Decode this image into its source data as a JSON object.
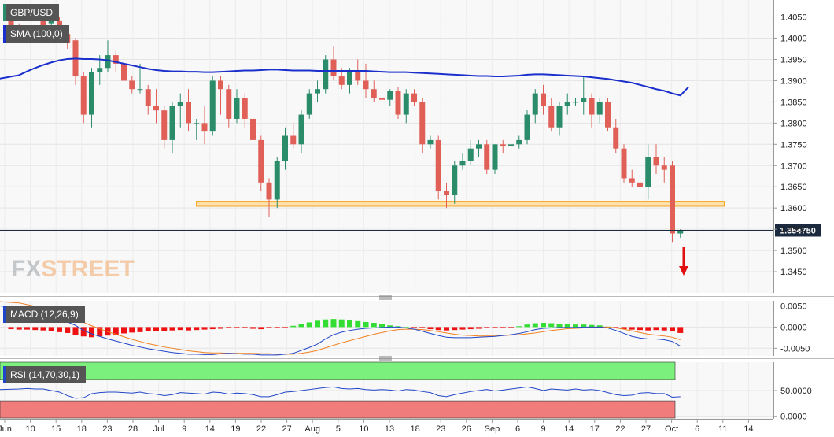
{
  "chart_data": {
    "type": "candlestick",
    "symbol": "GBP/USD",
    "indicator_labels": {
      "sma": "SMA (100,0)",
      "macd": "MACD (12,26,9)",
      "rsi": "RSI (14,70,30,1)"
    },
    "colors": {
      "up": "#2b8c6a",
      "down": "#e06058",
      "sma": "#1a2fcc",
      "support_zone": "#f5a623",
      "macd_line": "#2046c8",
      "signal_line": "#f08020",
      "hist_pos": "#33dd33",
      "hist_neg": "#ee1111",
      "rsi_line": "#2046c8",
      "rsi_overbought_fill": "#7cf07c",
      "rsi_oversold_fill": "#f07c7c",
      "arrow": "#e01010",
      "brand": "#f0a868",
      "price_label_bg": "#1c2a40"
    },
    "brand": {
      "prefix": "FX",
      "suffix": "STREET"
    },
    "x_tick_labels": [
      "Jun",
      "10",
      "15",
      "18",
      "23",
      "28",
      "Jul",
      "9",
      "14",
      "19",
      "22",
      "27",
      "Aug",
      "5",
      "10",
      "13",
      "18",
      "23",
      "26",
      "Sep",
      "6",
      "9",
      "14",
      "17",
      "22",
      "27",
      "Oct",
      "6",
      "11",
      "14"
    ],
    "price_axis": {
      "min": 1.34,
      "max": 1.409,
      "ticks": [
        "1.4050",
        "1.4000",
        "1.3950",
        "1.3900",
        "1.3850",
        "1.3800",
        "1.3750",
        "1.3700",
        "1.3650",
        "1.3600",
        "1.3550",
        "1.3500",
        "1.3450"
      ]
    },
    "last_price": "1.354750",
    "support_zone": [
      1.3605,
      1.3615
    ],
    "macd_axis": {
      "min": -0.0068,
      "max": 0.0062,
      "ticks": [
        "0.0050",
        "0.0000",
        "-0.0050"
      ]
    },
    "rsi_axis": {
      "min": -5,
      "max": 105,
      "ticks": [
        "50.0000",
        "0.0000"
      ],
      "overbought": 70,
      "oversold": 30
    },
    "candles": [
      [
        1.4045,
        1.405,
        1.4015,
        1.403
      ],
      [
        1.403,
        1.4035,
        1.4,
        1.401
      ],
      [
        1.401,
        1.4025,
        1.3995,
        1.402
      ],
      [
        1.402,
        1.403,
        1.3995,
        1.4
      ],
      [
        1.405,
        1.4065,
        1.4015,
        1.403
      ],
      [
        1.4035,
        1.4055,
        1.402,
        1.404
      ],
      [
        1.404,
        1.405,
        1.4,
        1.401
      ],
      [
        1.401,
        1.4025,
        1.3975,
        1.399
      ],
      [
        1.3995,
        1.4,
        1.389,
        1.391
      ],
      [
        1.391,
        1.392,
        1.38,
        1.382
      ],
      [
        1.382,
        1.393,
        1.379,
        1.392
      ],
      [
        1.392,
        1.396,
        1.389,
        1.393
      ],
      [
        1.393,
        1.3995,
        1.392,
        1.396
      ],
      [
        1.396,
        1.397,
        1.392,
        1.394
      ],
      [
        1.394,
        1.396,
        1.388,
        1.39
      ],
      [
        1.39,
        1.391,
        1.387,
        1.388
      ],
      [
        1.388,
        1.394,
        1.387,
        1.388
      ],
      [
        1.388,
        1.389,
        1.382,
        1.384
      ],
      [
        1.384,
        1.388,
        1.38,
        1.383
      ],
      [
        1.383,
        1.384,
        1.374,
        1.376
      ],
      [
        1.376,
        1.385,
        1.373,
        1.384
      ],
      [
        1.384,
        1.387,
        1.379,
        1.385
      ],
      [
        1.385,
        1.388,
        1.378,
        1.38
      ],
      [
        1.38,
        1.381,
        1.376,
        1.38
      ],
      [
        1.38,
        1.384,
        1.375,
        1.378
      ],
      [
        1.378,
        1.391,
        1.377,
        1.39
      ],
      [
        1.39,
        1.391,
        1.382,
        1.388
      ],
      [
        1.388,
        1.389,
        1.379,
        1.381
      ],
      [
        1.381,
        1.388,
        1.38,
        1.386
      ],
      [
        1.386,
        1.387,
        1.379,
        1.381
      ],
      [
        1.381,
        1.382,
        1.374,
        1.376
      ],
      [
        1.376,
        1.377,
        1.364,
        1.366
      ],
      [
        1.366,
        1.367,
        1.358,
        1.362
      ],
      [
        1.362,
        1.372,
        1.36,
        1.371
      ],
      [
        1.371,
        1.379,
        1.369,
        1.377
      ],
      [
        1.377,
        1.38,
        1.374,
        1.375
      ],
      [
        1.375,
        1.383,
        1.373,
        1.382
      ],
      [
        1.382,
        1.388,
        1.381,
        1.387
      ],
      [
        1.387,
        1.39,
        1.385,
        1.388
      ],
      [
        1.388,
        1.396,
        1.387,
        1.395
      ],
      [
        1.395,
        1.398,
        1.39,
        1.391
      ],
      [
        1.391,
        1.393,
        1.388,
        1.389
      ],
      [
        1.389,
        1.393,
        1.387,
        1.392
      ],
      [
        1.392,
        1.395,
        1.389,
        1.39
      ],
      [
        1.39,
        1.394,
        1.386,
        1.388
      ],
      [
        1.388,
        1.39,
        1.385,
        1.386
      ],
      [
        1.386,
        1.387,
        1.384,
        1.3855
      ],
      [
        1.3855,
        1.388,
        1.384,
        1.3875
      ],
      [
        1.3875,
        1.3885,
        1.381,
        1.382
      ],
      [
        1.382,
        1.388,
        1.38,
        1.387
      ],
      [
        1.387,
        1.388,
        1.384,
        1.385
      ],
      [
        1.385,
        1.386,
        1.373,
        1.375
      ],
      [
        1.375,
        1.377,
        1.374,
        1.376
      ],
      [
        1.376,
        1.377,
        1.362,
        1.364
      ],
      [
        1.364,
        1.366,
        1.36,
        1.363
      ],
      [
        1.363,
        1.371,
        1.361,
        1.37
      ],
      [
        1.37,
        1.373,
        1.369,
        1.371
      ],
      [
        1.371,
        1.376,
        1.37,
        1.374
      ],
      [
        1.374,
        1.376,
        1.372,
        1.375
      ],
      [
        1.375,
        1.376,
        1.368,
        1.369
      ],
      [
        1.369,
        1.375,
        1.368,
        1.375
      ],
      [
        1.375,
        1.376,
        1.373,
        1.3745
      ],
      [
        1.3745,
        1.376,
        1.374,
        1.375
      ],
      [
        1.375,
        1.377,
        1.374,
        1.376
      ],
      [
        1.376,
        1.383,
        1.375,
        1.382
      ],
      [
        1.382,
        1.388,
        1.38,
        1.387
      ],
      [
        1.387,
        1.389,
        1.382,
        1.384
      ],
      [
        1.384,
        1.386,
        1.378,
        1.379
      ],
      [
        1.379,
        1.385,
        1.377,
        1.384
      ],
      [
        1.384,
        1.387,
        1.382,
        1.385
      ],
      [
        1.385,
        1.386,
        1.384,
        1.385
      ],
      [
        1.385,
        1.391,
        1.382,
        1.386
      ],
      [
        1.386,
        1.387,
        1.379,
        1.382
      ],
      [
        1.382,
        1.386,
        1.38,
        1.385
      ],
      [
        1.385,
        1.386,
        1.378,
        1.379
      ],
      [
        1.379,
        1.381,
        1.373,
        1.374
      ],
      [
        1.374,
        1.375,
        1.366,
        1.367
      ],
      [
        1.367,
        1.369,
        1.365,
        1.366
      ],
      [
        1.366,
        1.368,
        1.362,
        1.365
      ],
      [
        1.365,
        1.375,
        1.362,
        1.372
      ],
      [
        1.372,
        1.375,
        1.368,
        1.37
      ],
      [
        1.37,
        1.372,
        1.366,
        1.369
      ],
      [
        1.37,
        1.371,
        1.352,
        1.354
      ],
      [
        1.354,
        1.355,
        1.353,
        1.3548
      ]
    ],
    "sma100": [
      1.3905,
      1.3913,
      1.3922,
      1.393,
      1.3937,
      1.3943,
      1.3948,
      1.3951,
      1.3952,
      1.3951,
      1.3951,
      1.395,
      1.3948,
      1.3944,
      1.394,
      1.3936,
      1.3932,
      1.3928,
      1.3925,
      1.3923,
      1.3922,
      1.3922,
      1.3921,
      1.3921,
      1.392,
      1.392,
      1.3921,
      1.3922,
      1.3923,
      1.3924,
      1.3924,
      1.3925,
      1.3926,
      1.3926,
      1.3925,
      1.3924,
      1.3924,
      1.3924,
      1.3923,
      1.3923,
      1.3923,
      1.3923,
      1.3923,
      1.3923,
      1.3923,
      1.3922,
      1.3921,
      1.392,
      1.392,
      1.392,
      1.3919,
      1.3918,
      1.3917,
      1.3916,
      1.3915,
      1.3914,
      1.3913,
      1.3912,
      1.3911,
      1.3911,
      1.391,
      1.391,
      1.3911,
      1.3912,
      1.3914,
      1.3915,
      1.3915,
      1.3914,
      1.3913,
      1.3912,
      1.3911,
      1.391,
      1.3908,
      1.3906,
      1.3904,
      1.3901,
      1.3898,
      1.3895,
      1.389,
      1.3885,
      1.388,
      1.3876,
      1.387,
      1.3865,
      1.3885
    ],
    "macd_hist": [
      -0.0005,
      -0.0006,
      -0.0006,
      -0.0007,
      -0.0008,
      -0.001,
      -0.0012,
      -0.0014,
      -0.0018,
      -0.0022,
      -0.0024,
      -0.0022,
      -0.002,
      -0.0018,
      -0.0015,
      -0.0013,
      -0.0012,
      -0.001,
      -0.0009,
      -0.0009,
      -0.0008,
      -0.0007,
      -0.0008,
      -0.0007,
      -0.0006,
      -0.0005,
      -0.0004,
      -0.0003,
      -0.0003,
      -0.0003,
      -0.0004,
      -0.0005,
      -0.0003,
      -0.0002,
      -0.0001,
      0.0003,
      0.0007,
      0.0011,
      0.0015,
      0.0018,
      0.0019,
      0.0018,
      0.0016,
      0.0014,
      0.0012,
      0.001,
      0.0007,
      0.0004,
      0.0002,
      0.0,
      -0.0002,
      -0.0003,
      -0.0005,
      -0.0007,
      -0.0008,
      -0.0007,
      -0.0006,
      -0.0005,
      -0.0004,
      -0.0003,
      -0.0002,
      -0.0002,
      -0.0001,
      0.0002,
      0.0006,
      0.0009,
      0.001,
      0.0009,
      0.0008,
      0.0007,
      0.0006,
      0.0006,
      0.0005,
      0.0004,
      0.0001,
      -0.0003,
      -0.0005,
      -0.0006,
      -0.0007,
      -0.0008,
      -0.0007,
      -0.0008,
      -0.001,
      -0.0014
    ],
    "macd_line": [
      0.005,
      0.0045,
      0.004,
      0.0035,
      0.003,
      0.0024,
      0.0018,
      0.0012,
      0.0004,
      -0.0008,
      -0.0016,
      -0.0022,
      -0.0028,
      -0.0033,
      -0.0038,
      -0.0043,
      -0.0047,
      -0.0051,
      -0.0054,
      -0.0057,
      -0.006,
      -0.0062,
      -0.0064,
      -0.0064,
      -0.0065,
      -0.0065,
      -0.0063,
      -0.0062,
      -0.0063,
      -0.0064,
      -0.0064,
      -0.0066,
      -0.0066,
      -0.0066,
      -0.0064,
      -0.0062,
      -0.0055,
      -0.0048,
      -0.004,
      -0.0028,
      -0.0018,
      -0.0012,
      -0.0008,
      -0.0005,
      -0.0003,
      -0.0002,
      -0.0001,
      0.0,
      0.0,
      -0.0002,
      -0.0005,
      -0.001,
      -0.0015,
      -0.002,
      -0.0024,
      -0.0025,
      -0.0025,
      -0.0025,
      -0.0024,
      -0.0023,
      -0.0022,
      -0.002,
      -0.0018,
      -0.0015,
      -0.0011,
      -0.0006,
      -0.0003,
      -0.0002,
      -0.0001,
      -0.0001,
      -0.0001,
      0.0,
      0.0,
      0.0,
      -0.0002,
      -0.0008,
      -0.0015,
      -0.0022,
      -0.0026,
      -0.0028,
      -0.0028,
      -0.003,
      -0.0034,
      -0.0045
    ],
    "macd_signal": [
      0.006,
      0.0057,
      0.0053,
      0.0049,
      0.0045,
      0.004,
      0.0034,
      0.0028,
      0.0021,
      0.0011,
      0.0003,
      -0.0004,
      -0.0011,
      -0.0017,
      -0.0023,
      -0.0029,
      -0.0034,
      -0.0039,
      -0.0043,
      -0.0047,
      -0.005,
      -0.0053,
      -0.0056,
      -0.0058,
      -0.006,
      -0.0061,
      -0.0061,
      -0.0062,
      -0.0062,
      -0.0062,
      -0.0062,
      -0.0063,
      -0.0063,
      -0.0064,
      -0.0064,
      -0.0064,
      -0.0062,
      -0.0059,
      -0.0055,
      -0.0049,
      -0.0043,
      -0.0037,
      -0.0032,
      -0.0027,
      -0.0022,
      -0.0017,
      -0.0013,
      -0.0009,
      -0.0006,
      -0.0005,
      -0.0005,
      -0.0006,
      -0.0008,
      -0.0011,
      -0.0014,
      -0.0017,
      -0.0019,
      -0.002,
      -0.0021,
      -0.0021,
      -0.0021,
      -0.002,
      -0.0019,
      -0.0018,
      -0.0016,
      -0.0014,
      -0.0011,
      -0.0008,
      -0.0006,
      -0.0004,
      -0.0003,
      -0.0002,
      -0.0001,
      0.0,
      0.0,
      -0.0002,
      -0.0005,
      -0.0009,
      -0.0013,
      -0.0017,
      -0.0019,
      -0.0021,
      -0.0024,
      -0.003
    ],
    "rsi": [
      52,
      53,
      54,
      53,
      53,
      50,
      47,
      40,
      35,
      36,
      44,
      46,
      47,
      47,
      46,
      45,
      47,
      44,
      43,
      40,
      42,
      46,
      45,
      44,
      43,
      47,
      46,
      43,
      45,
      44,
      42,
      38,
      38,
      42,
      47,
      48,
      50,
      52,
      54,
      56,
      57,
      54,
      53,
      54,
      52,
      51,
      52,
      51,
      49,
      52,
      51,
      48,
      46,
      40,
      38,
      42,
      45,
      48,
      50,
      52,
      49,
      51,
      53,
      55,
      57,
      54,
      50,
      53,
      52,
      51,
      53,
      51,
      52,
      50,
      46,
      42,
      40,
      41,
      45,
      46,
      44,
      44,
      37,
      38
    ]
  }
}
